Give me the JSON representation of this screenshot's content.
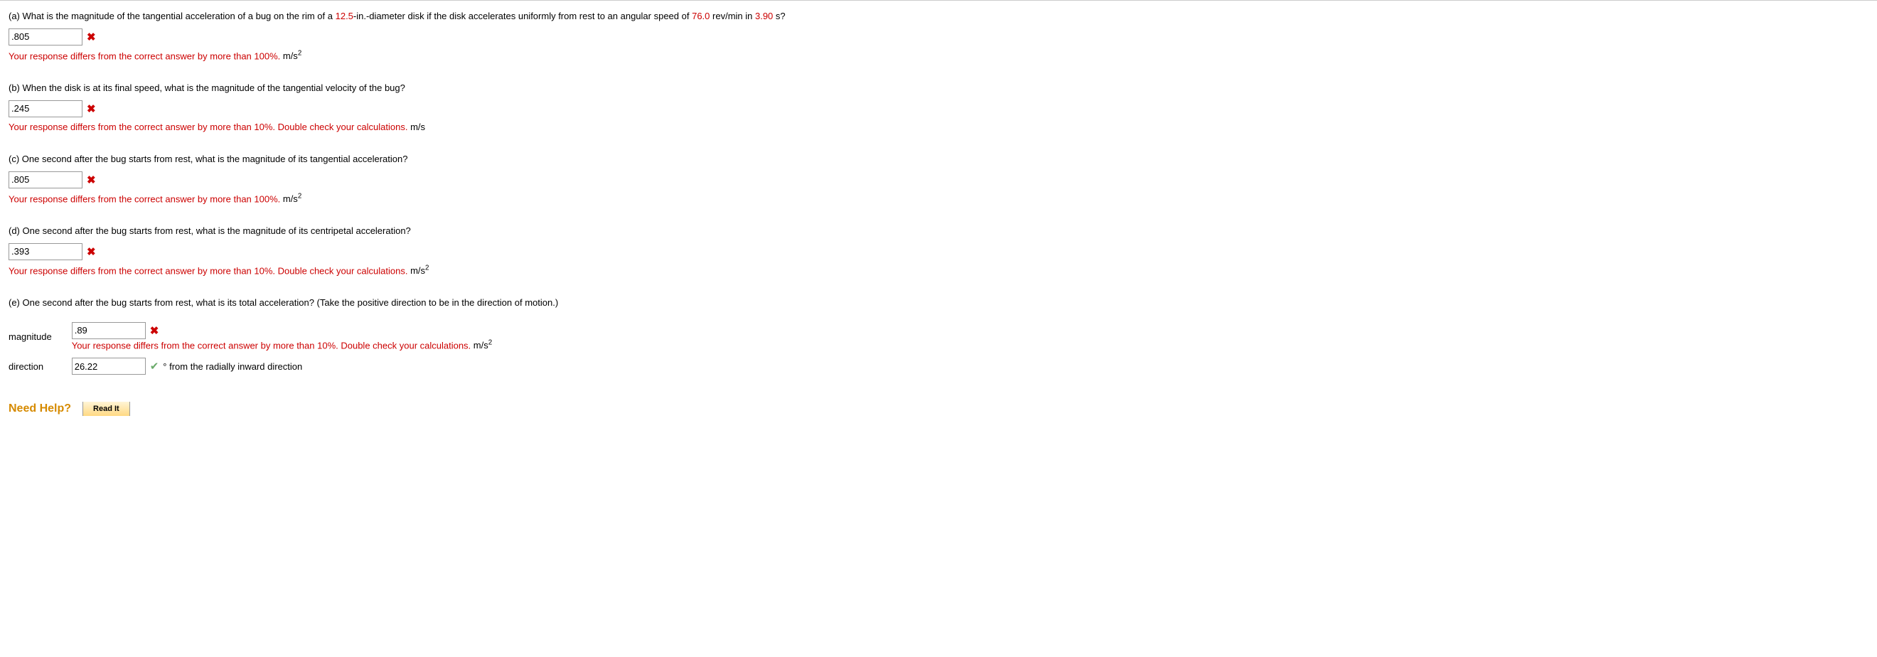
{
  "partA": {
    "prefix": "(a) What is the magnitude of the tangential acceleration of a bug on the rim of a ",
    "v1": "12.5",
    "mid1": "-in.-diameter disk if the disk accelerates uniformly from rest to an angular speed of ",
    "v2": "76.0",
    "mid2": " rev/min in ",
    "v3": "3.90",
    "suffix": " s?",
    "answer": ".805",
    "feedback": "Your response differs from the correct answer by more than 100%.",
    "units_base": " m/s",
    "units_sup": "2"
  },
  "partB": {
    "text": "(b) When the disk is at its final speed, what is the magnitude of the tangential velocity of the bug?",
    "answer": ".245",
    "feedback": "Your response differs from the correct answer by more than 10%. Double check your calculations.",
    "units": " m/s"
  },
  "partC": {
    "text": "(c) One second after the bug starts from rest, what is the magnitude of its tangential acceleration?",
    "answer": ".805",
    "feedback": "Your response differs from the correct answer by more than 100%.",
    "units_base": " m/s",
    "units_sup": "2"
  },
  "partD": {
    "text": "(d) One second after the bug starts from rest, what is the magnitude of its centripetal acceleration?",
    "answer": ".393",
    "feedback": "Your response differs from the correct answer by more than 10%. Double check your calculations.",
    "units_base": " m/s",
    "units_sup": "2"
  },
  "partE": {
    "text": "(e) One second after the bug starts from rest, what is its total acceleration? (Take the positive direction to be in the direction of motion.)",
    "magnitude_label": "magnitude",
    "magnitude_answer": ".89",
    "magnitude_feedback": "Your response differs from the correct answer by more than 10%. Double check your calculations.",
    "magnitude_units_base": " m/s",
    "magnitude_units_sup": "2",
    "direction_label": "direction",
    "direction_answer": "26.22",
    "direction_units": "° from the radially inward direction"
  },
  "help": {
    "label": "Need Help?",
    "read_it": "Read It"
  },
  "icons": {
    "x": "✖",
    "check": "✔"
  }
}
